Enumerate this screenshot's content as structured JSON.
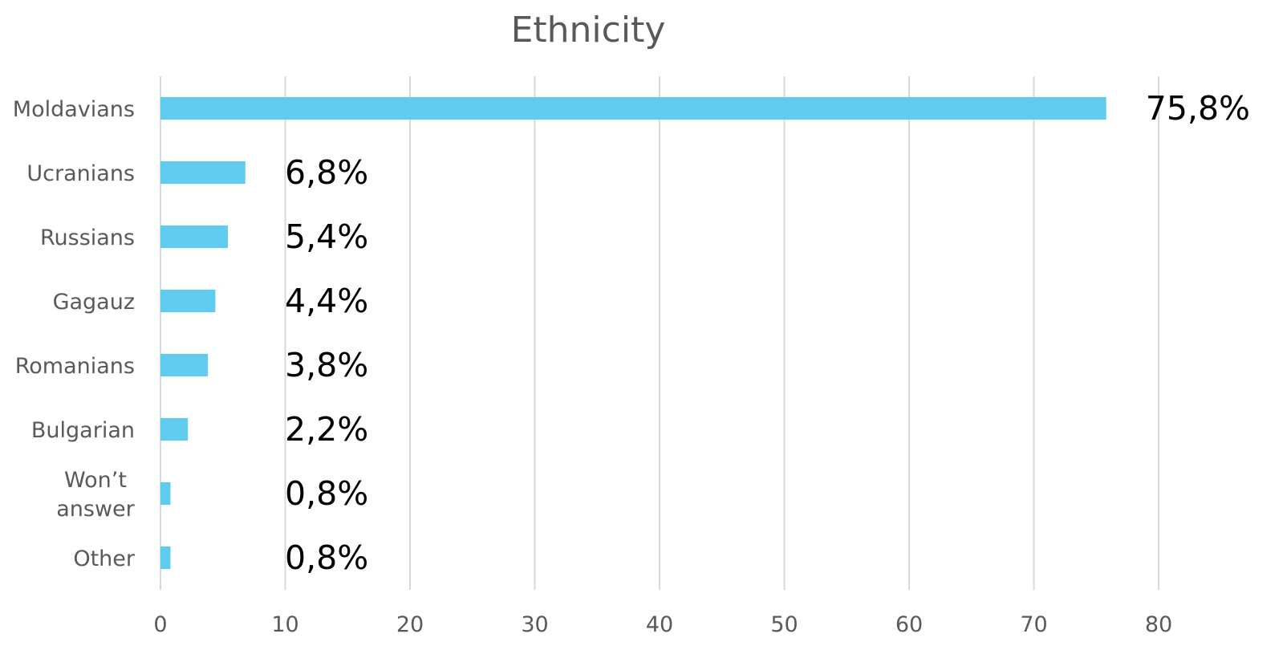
{
  "chart_data": {
    "type": "bar",
    "orientation": "horizontal",
    "title": "Ethnicity",
    "xlabel": "",
    "ylabel": "",
    "categories": [
      "Moldavians",
      "Ucranians",
      "Russians",
      "Gagauz",
      "Romanians",
      "Bulgarian",
      "Won’t answer",
      "Other"
    ],
    "category_lines": [
      [
        "Moldavians"
      ],
      [
        "Ucranians"
      ],
      [
        "Russians"
      ],
      [
        "Gagauz"
      ],
      [
        "Romanians"
      ],
      [
        "Bulgarian"
      ],
      [
        "Won’t",
        "answer"
      ],
      [
        "Other"
      ]
    ],
    "values": [
      75.8,
      6.8,
      5.4,
      4.4,
      3.8,
      2.2,
      0.8,
      0.8
    ],
    "data_labels": [
      "75,8%",
      "6,8%",
      "5,4%",
      "4,4%",
      "3,8%",
      "2,2%",
      "0,8%",
      "0,8%"
    ],
    "xlim": [
      0,
      80
    ],
    "x_ticks": [
      0,
      10,
      20,
      30,
      40,
      50,
      60,
      70,
      80
    ],
    "grid": true,
    "legend": "none",
    "bar_color": "#5ECBEF"
  }
}
